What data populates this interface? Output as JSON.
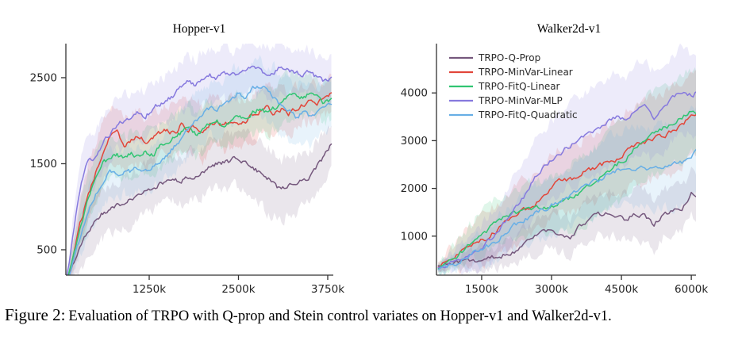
{
  "figure": {
    "caption_label": "Figure 2:",
    "caption_text": "Evaluation of TRPO with Q-prop and Stein control variates on Hopper-v1 and Walker2d-v1."
  },
  "style": {
    "axis_color": "#333333",
    "tick_label_color": "#262626",
    "legend_text_color": "#2b2b2b",
    "band_opacity": 0.15
  },
  "chart_data": [
    {
      "type": "line",
      "title": "Hopper-v1",
      "xlabel": "",
      "ylabel": "",
      "grid": false,
      "legend": false,
      "x_unit": "thousand steps",
      "x_range": [
        83,
        3828
      ],
      "y_range": [
        205,
        2896
      ],
      "x_ticks": [
        {
          "v": 1250,
          "label": "1250k"
        },
        {
          "v": 2500,
          "label": "2500k"
        },
        {
          "v": 3750,
          "label": "3750k"
        }
      ],
      "y_ticks": [
        {
          "v": 500,
          "label": "500"
        },
        {
          "v": 1500,
          "label": "1500"
        },
        {
          "v": 2500,
          "label": "2500"
        }
      ],
      "x": [
        85,
        200,
        300,
        400,
        500,
        600,
        700,
        800,
        900,
        1000,
        1100,
        1200,
        1300,
        1400,
        1500,
        1600,
        1700,
        1800,
        1900,
        2000,
        2100,
        2200,
        2300,
        2400,
        2500,
        2600,
        2700,
        2800,
        2900,
        3000,
        3100,
        3200,
        3300,
        3400,
        3500,
        3600,
        3700,
        3800
      ],
      "series": [
        {
          "name": "TRPO-Q-Prop",
          "color": "#75587d",
          "values": [
            100,
            350,
            550,
            720,
            850,
            920,
            980,
            1000,
            1050,
            1080,
            1150,
            1200,
            1240,
            1260,
            1300,
            1320,
            1300,
            1340,
            1380,
            1420,
            1460,
            1500,
            1510,
            1540,
            1560,
            1500,
            1460,
            1400,
            1320,
            1280,
            1180,
            1260,
            1220,
            1300,
            1360,
            1460,
            1600,
            1720
          ],
          "spread": [
            30,
            150,
            250,
            300,
            300,
            300,
            280,
            280,
            280,
            280,
            280,
            280,
            260,
            260,
            260,
            260,
            260,
            280,
            280,
            280,
            280,
            300,
            300,
            300,
            320,
            340,
            360,
            380,
            380,
            380,
            360,
            340,
            320,
            300,
            300,
            280,
            260,
            240
          ]
        },
        {
          "name": "TRPO-MinVar-Linear",
          "color": "#e2463a",
          "values": [
            100,
            500,
            850,
            1150,
            1400,
            1600,
            1800,
            1850,
            1700,
            1780,
            1820,
            1750,
            1800,
            1850,
            1900,
            1850,
            1950,
            1900,
            1950,
            1850,
            1950,
            2000,
            1940,
            1990,
            1950,
            2000,
            2060,
            2100,
            2150,
            2080,
            2140,
            2080,
            2140,
            2180,
            2230,
            2180,
            2260,
            2320
          ],
          "spread": [
            40,
            200,
            300,
            350,
            350,
            350,
            350,
            300,
            300,
            300,
            300,
            300,
            300,
            280,
            280,
            280,
            280,
            280,
            300,
            320,
            320,
            300,
            300,
            280,
            280,
            280,
            260,
            260,
            260,
            260,
            240,
            240,
            240,
            220,
            220,
            220,
            200,
            200
          ]
        },
        {
          "name": "TRPO-FitQ-Linear",
          "color": "#31c572",
          "values": [
            100,
            450,
            800,
            1100,
            1350,
            1500,
            1560,
            1600,
            1560,
            1620,
            1580,
            1640,
            1600,
            1700,
            1750,
            1800,
            1860,
            1920,
            1840,
            1900,
            1960,
            2000,
            1940,
            2000,
            2040,
            1990,
            2080,
            2140,
            2090,
            2150,
            2200,
            2260,
            2320,
            2260,
            2320,
            2260,
            2200,
            2260
          ],
          "spread": [
            30,
            150,
            250,
            280,
            280,
            260,
            260,
            240,
            240,
            240,
            240,
            240,
            240,
            240,
            240,
            240,
            260,
            260,
            260,
            260,
            260,
            260,
            240,
            240,
            240,
            240,
            240,
            240,
            260,
            260,
            260,
            260,
            260,
            240,
            240,
            240,
            240,
            240
          ]
        },
        {
          "name": "TRPO-MinVar-MLP",
          "color": "#8679de",
          "values": [
            120,
            750,
            1300,
            1550,
            1580,
            1750,
            1850,
            1950,
            2000,
            2050,
            2100,
            2050,
            2150,
            2200,
            2250,
            2300,
            2400,
            2450,
            2400,
            2480,
            2520,
            2500,
            2560,
            2520,
            2550,
            2600,
            2660,
            2580,
            2540,
            2580,
            2620,
            2600,
            2560,
            2540,
            2560,
            2500,
            2460,
            2510
          ],
          "spread": [
            50,
            250,
            350,
            350,
            320,
            300,
            300,
            280,
            280,
            280,
            280,
            280,
            280,
            280,
            300,
            300,
            300,
            320,
            320,
            300,
            300,
            300,
            300,
            300,
            280,
            280,
            300,
            300,
            300,
            280,
            280,
            280,
            260,
            260,
            260,
            260,
            260,
            260
          ]
        },
        {
          "name": "TRPO-FitQ-Quadratic",
          "color": "#68afe6",
          "values": [
            100,
            400,
            700,
            950,
            1150,
            1300,
            1400,
            1380,
            1420,
            1400,
            1460,
            1420,
            1480,
            1540,
            1600,
            1700,
            1800,
            1900,
            2000,
            2080,
            2150,
            2100,
            2200,
            2260,
            2320,
            2260,
            2360,
            2400,
            2340,
            2280,
            2180,
            2120,
            2040,
            2100,
            2040,
            2100,
            2150,
            2180
          ],
          "spread": [
            40,
            150,
            250,
            300,
            300,
            300,
            280,
            260,
            260,
            260,
            260,
            260,
            260,
            260,
            280,
            300,
            320,
            340,
            340,
            320,
            300,
            300,
            300,
            300,
            300,
            300,
            300,
            300,
            320,
            340,
            360,
            380,
            380,
            360,
            340,
            320,
            300,
            280
          ]
        }
      ]
    },
    {
      "type": "line",
      "title": "Walker2d-v1",
      "xlabel": "",
      "ylabel": "",
      "grid": false,
      "legend": true,
      "legend_position": "upper left",
      "x_unit": "thousand steps",
      "x_range": [
        530,
        6100
      ],
      "y_range": [
        183,
        5033
      ],
      "x_ticks": [
        {
          "v": 1500,
          "label": "1500k"
        },
        {
          "v": 3000,
          "label": "3000k"
        },
        {
          "v": 4500,
          "label": "4500k"
        },
        {
          "v": 6000,
          "label": "6000k"
        }
      ],
      "y_ticks": [
        {
          "v": 1000,
          "label": "1000"
        },
        {
          "v": 2000,
          "label": "2000"
        },
        {
          "v": 3000,
          "label": "3000"
        },
        {
          "v": 4000,
          "label": "4000"
        }
      ],
      "x": [
        570,
        800,
        1000,
        1200,
        1400,
        1600,
        1800,
        2000,
        2200,
        2400,
        2600,
        2800,
        3000,
        3200,
        3400,
        3600,
        3800,
        4000,
        4200,
        4400,
        4600,
        4800,
        5000,
        5200,
        5400,
        5600,
        5800,
        6000,
        6200
      ],
      "series": [
        {
          "name": "TRPO-Q-Prop",
          "color": "#75587d",
          "values": [
            380,
            420,
            450,
            470,
            500,
            540,
            560,
            620,
            700,
            820,
            950,
            1050,
            1100,
            1050,
            1000,
            1200,
            1350,
            1430,
            1500,
            1420,
            1350,
            1480,
            1450,
            1200,
            1480,
            1520,
            1560,
            1880,
            1700
          ],
          "spread": [
            80,
            100,
            120,
            150,
            180,
            200,
            220,
            250,
            280,
            300,
            320,
            350,
            380,
            380,
            400,
            420,
            450,
            450,
            470,
            480,
            500,
            500,
            520,
            550,
            520,
            500,
            480,
            450,
            420
          ]
        },
        {
          "name": "TRPO-MinVar-Linear",
          "color": "#e2463a",
          "values": [
            350,
            500,
            600,
            750,
            900,
            950,
            1100,
            1250,
            1400,
            1550,
            1600,
            1800,
            2050,
            2150,
            2200,
            2250,
            2400,
            2450,
            2550,
            2600,
            2750,
            2900,
            2950,
            3050,
            3100,
            3200,
            3350,
            3500,
            3600
          ],
          "spread": [
            100,
            200,
            300,
            400,
            450,
            500,
            550,
            550,
            600,
            600,
            620,
            650,
            650,
            680,
            700,
            700,
            720,
            750,
            780,
            800,
            820,
            850,
            850,
            880,
            900,
            900,
            880,
            850,
            820
          ]
        },
        {
          "name": "TRPO-FitQ-Linear",
          "color": "#31c572",
          "values": [
            320,
            480,
            620,
            800,
            1000,
            1100,
            1300,
            1420,
            1480,
            1520,
            1550,
            1580,
            1620,
            1700,
            1800,
            1900,
            2050,
            2150,
            2350,
            2500,
            2650,
            2900,
            3050,
            3150,
            3250,
            3350,
            3500,
            3620,
            3480
          ],
          "spread": [
            80,
            180,
            280,
            350,
            400,
            450,
            480,
            500,
            520,
            550,
            580,
            600,
            620,
            650,
            680,
            700,
            720,
            750,
            780,
            800,
            820,
            850,
            870,
            880,
            900,
            900,
            880,
            860,
            840
          ]
        },
        {
          "name": "TRPO-MinVar-MLP",
          "color": "#8679de",
          "values": [
            340,
            420,
            500,
            600,
            720,
            850,
            1050,
            1300,
            1550,
            1800,
            2150,
            2450,
            2600,
            2750,
            2900,
            3050,
            3150,
            3250,
            3400,
            3500,
            3400,
            3600,
            3700,
            3500,
            3650,
            3900,
            4050,
            3950,
            4050
          ],
          "spread": [
            80,
            150,
            250,
            350,
            400,
            500,
            550,
            600,
            650,
            700,
            750,
            780,
            800,
            820,
            850,
            880,
            900,
            920,
            950,
            950,
            950,
            950,
            950,
            950,
            950,
            900,
            880,
            850,
            820
          ]
        },
        {
          "name": "TRPO-FitQ-Quadratic",
          "color": "#68afe6",
          "values": [
            300,
            380,
            450,
            550,
            680,
            780,
            900,
            1050,
            1200,
            1320,
            1450,
            1550,
            1650,
            1750,
            1850,
            2000,
            2080,
            2150,
            2300,
            2380,
            2420,
            2450,
            2400,
            2430,
            2450,
            2480,
            2550,
            2700,
            2900
          ],
          "spread": [
            60,
            120,
            200,
            280,
            350,
            400,
            450,
            480,
            500,
            520,
            550,
            580,
            600,
            620,
            650,
            680,
            700,
            720,
            750,
            780,
            800,
            820,
            840,
            850,
            860,
            870,
            880,
            880,
            860
          ]
        }
      ]
    }
  ]
}
